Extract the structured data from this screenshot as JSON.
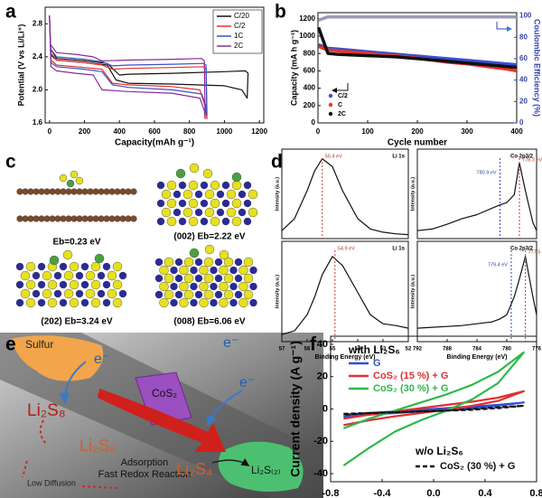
{
  "panels": [
    "a",
    "b",
    "c",
    "d",
    "e",
    "f"
  ],
  "chart_data": [
    {
      "type": "line",
      "xlabel": "Capacity(mAh g⁻¹)",
      "ylabel": "Potential (V vs Li/Li⁺)",
      "xlim": [
        -25,
        1225
      ],
      "xticks": [
        0,
        200,
        400,
        600,
        800,
        1000,
        1200
      ],
      "ylim": [
        1.6,
        3.0
      ],
      "yticks": [
        1.6,
        {
          "value": 2,
          "label": "2.0"
        },
        2.4,
        2.8
      ],
      "legend": "upper right",
      "series": [
        {
          "name": "C/20",
          "color": "#111111",
          "x": [
            0,
            8,
            40,
            200,
            330,
            380,
            450,
            700,
            1000,
            1100,
            1130,
            1135,
            1120,
            1000,
            700,
            450,
            400,
            330,
            200,
            40,
            5
          ],
          "values": [
            2.9,
            2.42,
            2.36,
            2.33,
            2.3,
            2.12,
            2.08,
            2.07,
            2.05,
            2.0,
            1.9,
            2.2,
            2.23,
            2.22,
            2.2,
            2.19,
            2.18,
            2.32,
            2.35,
            2.38,
            2.5
          ]
        },
        {
          "name": "C/2",
          "color": "#e8312a",
          "x": [
            0,
            8,
            40,
            200,
            300,
            360,
            450,
            700,
            860,
            890,
            900,
            895,
            880,
            700,
            450,
            360,
            300,
            200,
            40,
            5
          ],
          "values": [
            2.9,
            2.36,
            2.3,
            2.27,
            2.25,
            2.08,
            2.06,
            2.04,
            2.0,
            1.8,
            1.65,
            2.25,
            2.28,
            2.27,
            2.26,
            2.25,
            2.3,
            2.33,
            2.36,
            2.45
          ]
        },
        {
          "name": "1C",
          "color": "#3a52c4",
          "x": [
            0,
            8,
            40,
            200,
            300,
            360,
            450,
            700,
            870,
            895,
            900,
            895,
            880,
            700,
            450,
            360,
            300,
            200,
            40,
            5
          ],
          "values": [
            2.9,
            2.33,
            2.28,
            2.25,
            2.22,
            2.06,
            2.03,
            2.0,
            1.95,
            1.8,
            1.7,
            2.3,
            2.32,
            2.31,
            2.3,
            2.29,
            2.34,
            2.37,
            2.4,
            2.5
          ]
        },
        {
          "name": "2C",
          "color": "#8b2a9c",
          "x": [
            0,
            8,
            40,
            150,
            250,
            300,
            450,
            700,
            860,
            885,
            890,
            885,
            870,
            700,
            450,
            300,
            250,
            150,
            40,
            5
          ],
          "values": [
            2.9,
            2.28,
            2.23,
            2.2,
            2.18,
            2.0,
            1.98,
            1.96,
            1.9,
            1.75,
            1.65,
            2.35,
            2.38,
            2.37,
            2.36,
            2.35,
            2.4,
            2.43,
            2.45,
            2.55
          ]
        }
      ]
    },
    {
      "type": "line",
      "xlabel": "Cycle number",
      "ylabel": "Capacity (mA h g⁻¹)",
      "y2label": "Coulombic Efficiency (%)",
      "y2color": "#3344aa",
      "xlim": [
        0,
        400
      ],
      "xticks": [
        0,
        100,
        200,
        300,
        400
      ],
      "ylim": [
        0,
        1270
      ],
      "yticks": [
        0,
        200,
        400,
        600,
        800,
        1000,
        1200
      ],
      "y2lim": [
        0,
        103
      ],
      "y2ticks": [
        0,
        20,
        40,
        60,
        80,
        100
      ],
      "legend": "lower left",
      "x": [
        1,
        20,
        40,
        60,
        80,
        100,
        120,
        140,
        160,
        180,
        200,
        220,
        240,
        260,
        280,
        300,
        320,
        340,
        360,
        380,
        400
      ],
      "series": [
        {
          "name": "C/2",
          "color": "#3b4fd0",
          "values": [
            900,
            860,
            850,
            840,
            830,
            820,
            810,
            800,
            790,
            780,
            770,
            760,
            750,
            740,
            730,
            720,
            710,
            700,
            690,
            680,
            670
          ]
        },
        {
          "name": "C",
          "color": "#e8342a",
          "values": [
            880,
            840,
            830,
            820,
            810,
            800,
            790,
            780,
            770,
            760,
            745,
            730,
            715,
            700,
            690,
            680,
            665,
            650,
            635,
            620,
            600
          ]
        },
        {
          "name": "2C",
          "color": "#111111",
          "values": [
            1100,
            800,
            790,
            785,
            780,
            775,
            770,
            765,
            760,
            750,
            740,
            730,
            720,
            710,
            700,
            690,
            680,
            670,
            660,
            650,
            640
          ]
        },
        {
          "axis": "y2",
          "color": "#9a9ab4",
          "values": [
            96,
            99,
            99,
            99,
            99,
            99,
            99,
            99,
            99,
            99,
            99,
            99,
            99,
            99,
            99,
            99,
            99,
            99,
            99,
            99,
            99
          ]
        }
      ]
    },
    {
      "type": "line",
      "title": "Li 1s",
      "ylabel": "Intensity (a.u.)",
      "annotations": [
        "55.4 eV"
      ],
      "peaks": [
        55.4
      ],
      "xlim": [
        57,
        52
      ],
      "ylim": [
        0,
        1.12
      ],
      "color": "#111111",
      "x": [
        57,
        56.5,
        56,
        55.7,
        55.4,
        55,
        54.6,
        54,
        53.5,
        53,
        52.5,
        52
      ],
      "values": [
        0.1,
        0.25,
        0.6,
        0.85,
        1,
        0.9,
        0.6,
        0.25,
        0.12,
        0.08,
        0.06,
        0.05
      ]
    },
    {
      "type": "line",
      "title": "Li 1s",
      "ylabel": "Intensity (a.u.)",
      "xlabel": "Binding Energy (eV)",
      "annotations": [
        "54.9 eV"
      ],
      "peaks": [
        54.9
      ],
      "xlim": [
        57,
        52
      ],
      "xticks": [
        57,
        56,
        55,
        54,
        53,
        52
      ],
      "ylim": [
        0,
        1.12
      ],
      "color": "#111111",
      "x": [
        57,
        56.5,
        56,
        55.7,
        55.4,
        55,
        54.6,
        54,
        53.5,
        53,
        52.5,
        52
      ],
      "values": [
        0.08,
        0.12,
        0.3,
        0.5,
        0.75,
        0.95,
        0.85,
        0.55,
        0.3,
        0.2,
        0.18,
        0.15
      ]
    },
    {
      "type": "line",
      "title": "Co 2p3/2",
      "ylabel": "Intensity (a.u.)",
      "annotations": [
        "778.3 eV",
        "780.9 eV"
      ],
      "peaks": [
        778.3,
        780.9
      ],
      "xlim": [
        792,
        776
      ],
      "ylim": [
        0,
        1.12
      ],
      "color": "#111111",
      "x": [
        792,
        790,
        788,
        786,
        784,
        782,
        781,
        780,
        779,
        778.3,
        777.5,
        776.5,
        776
      ],
      "values": [
        0.1,
        0.12,
        0.18,
        0.25,
        0.3,
        0.38,
        0.42,
        0.45,
        0.55,
        0.95,
        0.6,
        0.2,
        0.1
      ]
    },
    {
      "type": "line",
      "title": "Co 2p3/2",
      "ylabel": "Intensity (a.u.)",
      "xlabel": "Binding Energy (eV)",
      "annotations": [
        "777.5 eV",
        "779.4 eV"
      ],
      "peaks": [
        777.5,
        779.4
      ],
      "xlim": [
        792,
        776
      ],
      "xticks": [
        792,
        788,
        784,
        780,
        776
      ],
      "ylim": [
        0,
        1.12
      ],
      "color": "#111111",
      "x": [
        792,
        790,
        788,
        786,
        784,
        782,
        781,
        780,
        779,
        778.3,
        777.5,
        776.5,
        776
      ],
      "values": [
        0.15,
        0.16,
        0.17,
        0.18,
        0.2,
        0.22,
        0.25,
        0.3,
        0.5,
        0.7,
        0.95,
        0.5,
        0.3
      ]
    },
    {
      "type": "line",
      "ylabel": "Current density (A g⁻¹)",
      "xlim": [
        -0.8,
        0.8
      ],
      "xticks": [
        -0.8,
        -0.4,
        {
          "value": 0,
          "label": "0.0"
        },
        0.4,
        0.8
      ],
      "ylim": [
        -45,
        45
      ],
      "yticks": [
        -40,
        -20,
        0,
        20,
        40
      ],
      "legend_headers": [
        "with Li₂S₆",
        "w/o Li₂S₆"
      ],
      "x": [
        -0.7,
        -0.5,
        -0.3,
        -0.1,
        0.1,
        0.3,
        0.5,
        0.7,
        0.5,
        0.3,
        0.1,
        -0.1,
        -0.3,
        -0.5,
        -0.7
      ],
      "series": [
        {
          "name": "G",
          "color": "#3050d0",
          "values": [
            -4,
            -2.5,
            -1.5,
            -0.5,
            0.5,
            1.5,
            2.5,
            4,
            2,
            0.5,
            -0.5,
            -1.5,
            -2.5,
            -3.5,
            -5
          ]
        },
        {
          "name": "CoS₂ (15 %) + G",
          "color": "#e03030",
          "values": [
            -6,
            -3.5,
            -1.5,
            0.5,
            2.5,
            4.5,
            7,
            11,
            5,
            2,
            -0.5,
            -2.5,
            -4.5,
            -7,
            -10
          ]
        },
        {
          "name": "CoS₂ (30 %) + G",
          "color": "#2eb84a",
          "values": [
            -12,
            -6,
            -1,
            4,
            9,
            15,
            23,
            35,
            16,
            6,
            -1,
            -7,
            -14,
            -24,
            -35
          ]
        },
        {
          "name": "CoS₂ (30 %) + G",
          "color": "#111111",
          "dash": true,
          "values": [
            -3,
            -2.5,
            -2,
            -1.5,
            -1,
            0,
            1,
            2,
            0.5,
            -0.5,
            -1,
            -1.5,
            -2,
            -2.5,
            -3.5
          ]
        }
      ]
    }
  ],
  "structures": [
    "Eb=0.23 eV",
    "(002)  Eb=2.22 eV",
    "(202)  Eb=3.24 eV",
    "(008)  Eb=6.06 eV"
  ],
  "diagram": {
    "sulfur": "Sulfur",
    "electron": "e⁻",
    "cos2": "CoS₂",
    "li2s8": "Li₂S₈",
    "li2s6": "Li₂S₆",
    "li2s4": "Li₂S₄",
    "li2s": "Li₂S₍₂₎",
    "adsorption": "Adsorption",
    "redox": "Fast Redox Reaction",
    "diffusion": "Low Diffusion"
  }
}
